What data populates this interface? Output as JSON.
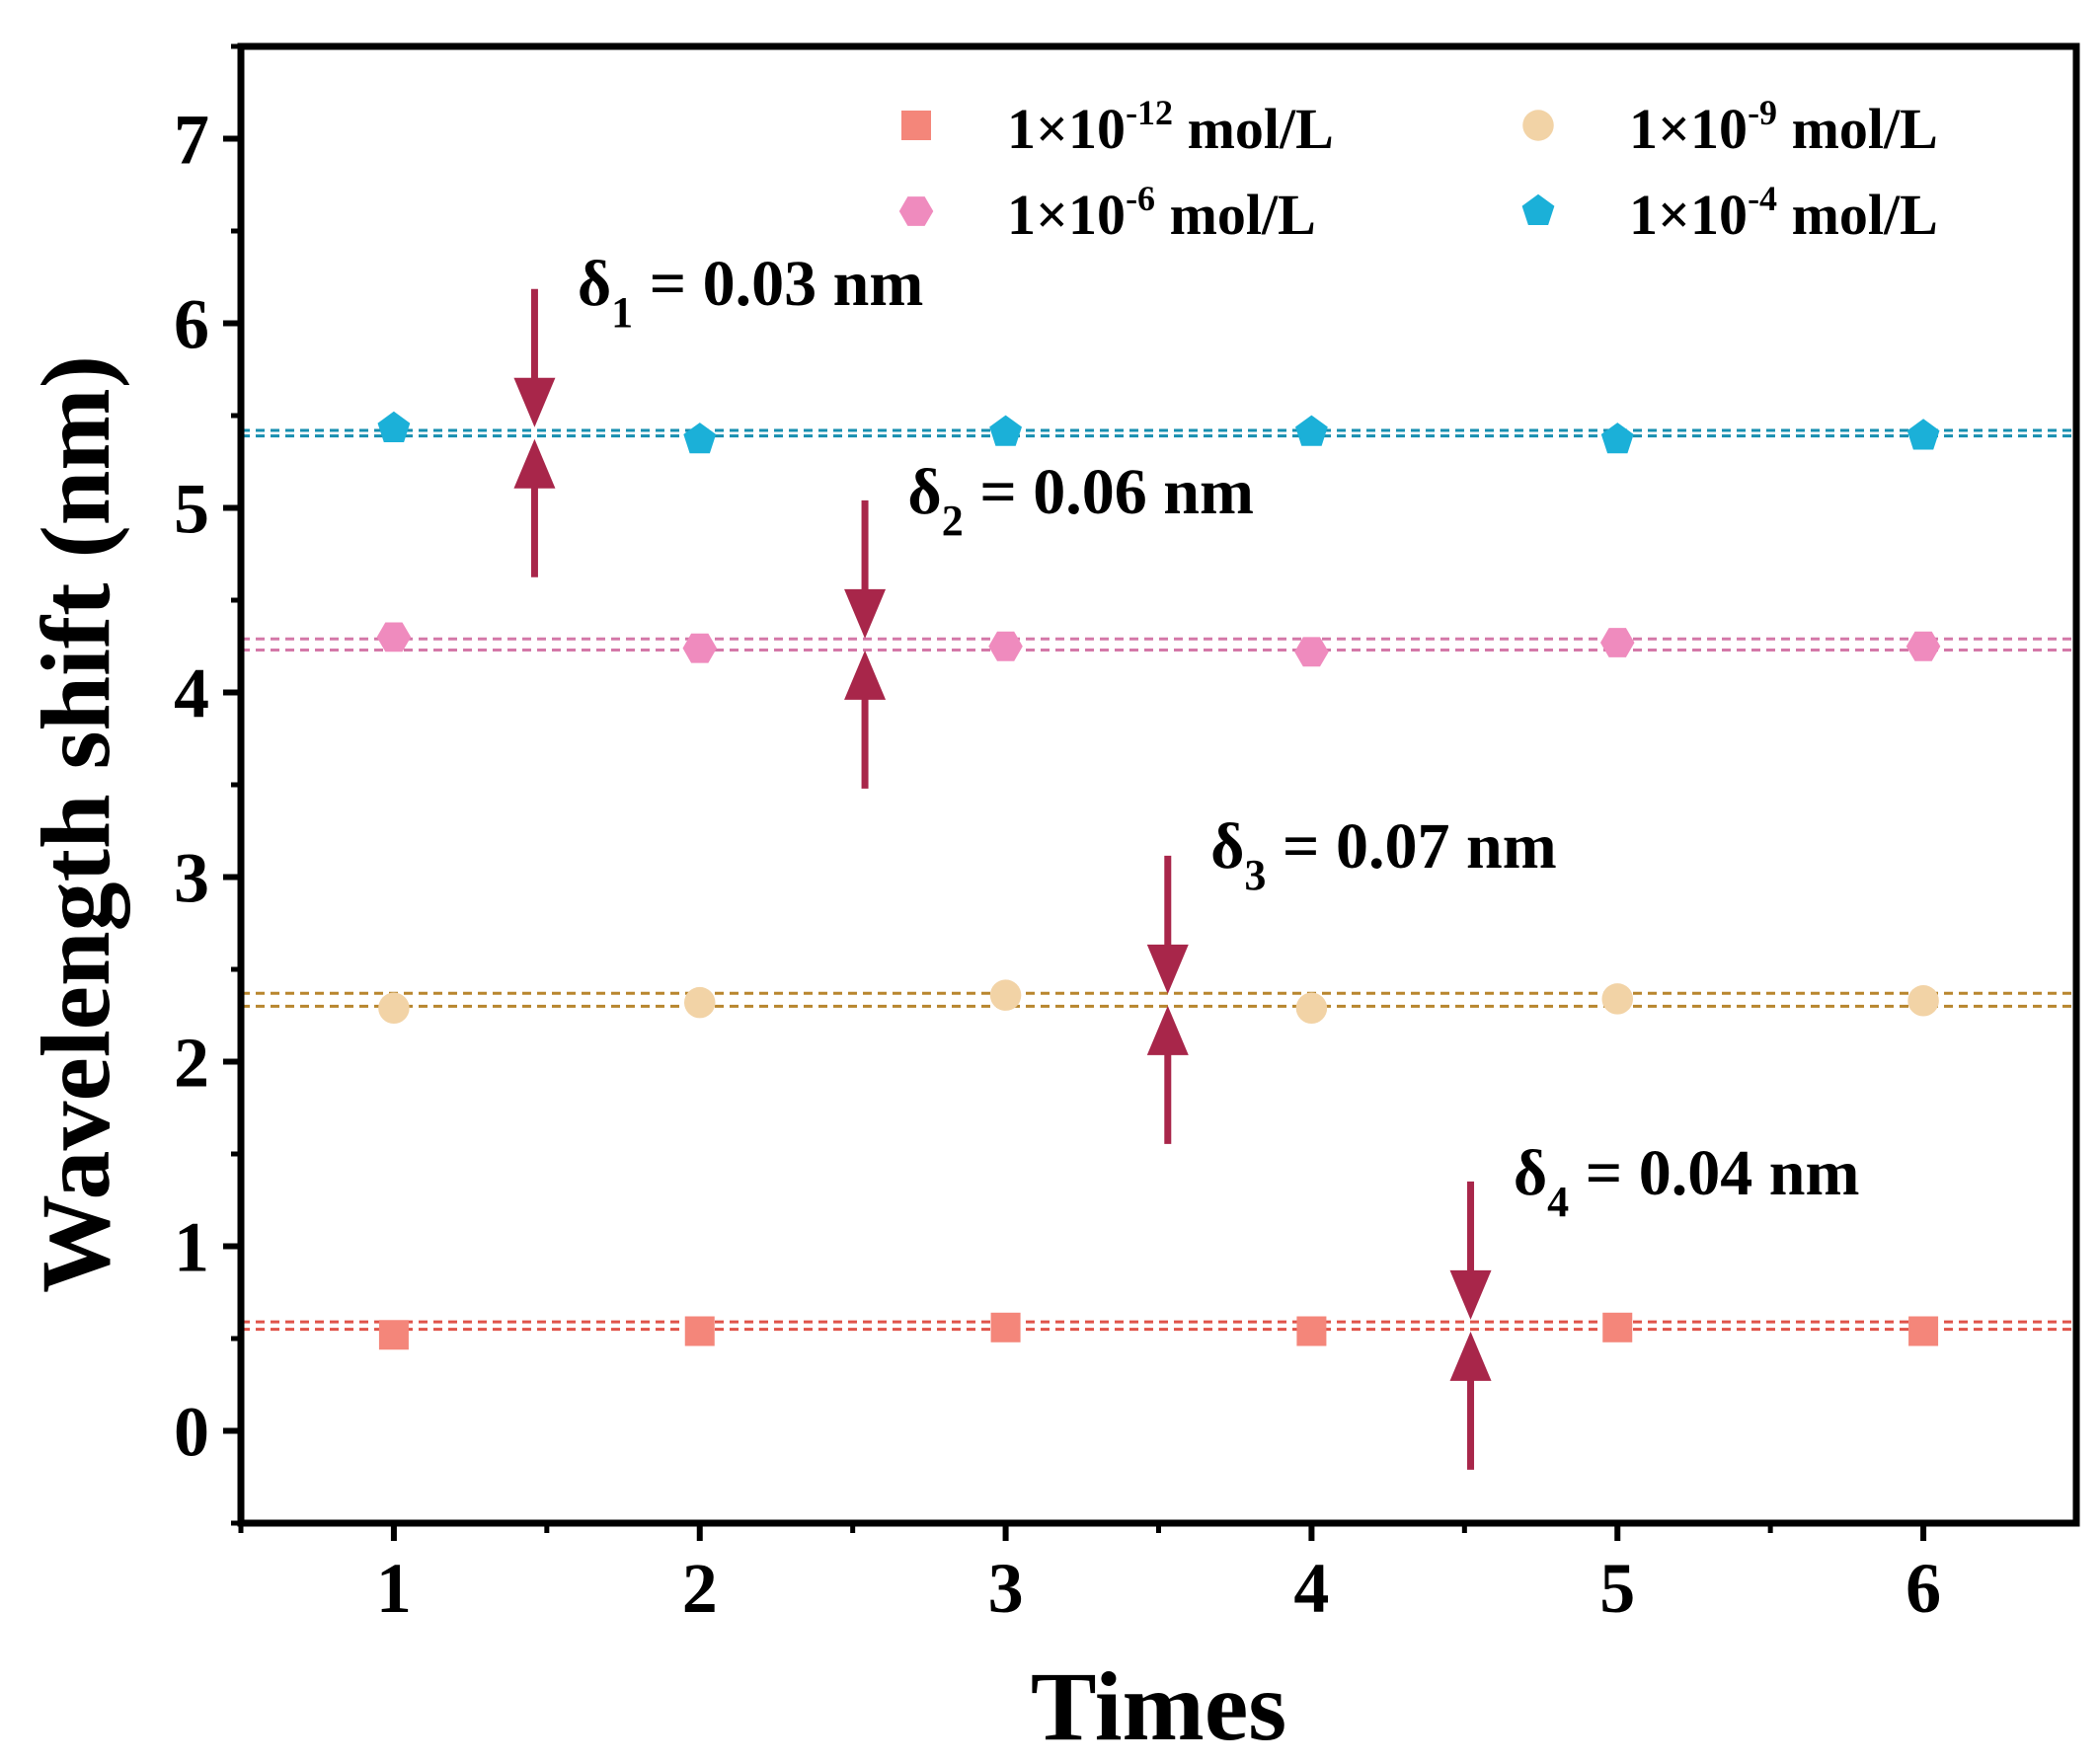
{
  "chart_data": {
    "type": "scatter",
    "xlabel": "Times",
    "ylabel": "Wavelength shift (nm)",
    "xlim": [
      0.5,
      6.5
    ],
    "ylim": [
      -0.5,
      7.5
    ],
    "x_ticks": [
      1,
      2,
      3,
      4,
      5,
      6
    ],
    "y_ticks": [
      0,
      1,
      2,
      3,
      4,
      5,
      6,
      7
    ],
    "x_tick_labels": [
      "1",
      "2",
      "3",
      "4",
      "5",
      "6"
    ],
    "y_tick_labels": [
      "0",
      "1",
      "2",
      "3",
      "4",
      "5",
      "6",
      "7"
    ],
    "grid": false,
    "legend_position": "top-right",
    "x": [
      1,
      2,
      3,
      4,
      5,
      6
    ],
    "series": [
      {
        "name": "1×10-12 mol/L",
        "label_base": "1×10",
        "label_exp": "-12",
        "label_unit": " mol/L",
        "marker": "square",
        "color": "#F4867A",
        "line_color": "#E0544A",
        "values": [
          0.52,
          0.54,
          0.56,
          0.54,
          0.56,
          0.54
        ],
        "band": [
          0.55,
          0.59
        ]
      },
      {
        "name": "1×10-9 mol/L",
        "label_base": "1×10",
        "label_exp": "-9",
        "label_unit": " mol/L",
        "marker": "circle",
        "color": "#F2D3A6",
        "line_color": "#B8862E",
        "values": [
          2.29,
          2.32,
          2.36,
          2.29,
          2.34,
          2.33
        ],
        "band": [
          2.3,
          2.37
        ]
      },
      {
        "name": "1×10-6 mol/L",
        "label_base": "1×10",
        "label_exp": "-6",
        "label_unit": " mol/L",
        "marker": "hexagon",
        "color": "#EF8BBE",
        "line_color": "#D478A8",
        "values": [
          4.3,
          4.24,
          4.25,
          4.22,
          4.27,
          4.25
        ],
        "band": [
          4.23,
          4.29
        ]
      },
      {
        "name": "1×10-4 mol/L",
        "label_base": "1×10",
        "label_exp": "-4",
        "label_unit": " mol/L",
        "marker": "pentagon",
        "color": "#1BB0D8",
        "line_color": "#178FB0",
        "values": [
          5.43,
          5.37,
          5.41,
          5.41,
          5.37,
          5.39
        ],
        "band": [
          5.39,
          5.42
        ]
      }
    ],
    "annotations": [
      {
        "id": "d1",
        "symbol": "δ",
        "sub": "1",
        "text": " = 0.03 nm",
        "arrow_x": 1.46,
        "arrow_y": 5.405,
        "label_x": 1.6,
        "label_y": 6.1
      },
      {
        "id": "d2",
        "symbol": "δ",
        "sub": "2",
        "text": " = 0.06 nm",
        "arrow_x": 2.54,
        "arrow_y": 4.26,
        "label_x": 2.68,
        "label_y": 4.97
      },
      {
        "id": "d3",
        "symbol": "δ",
        "sub": "3",
        "text": " = 0.07 nm",
        "arrow_x": 3.53,
        "arrow_y": 2.335,
        "label_x": 3.67,
        "label_y": 3.05
      },
      {
        "id": "d4",
        "symbol": "δ",
        "sub": "4",
        "text": " = 0.04 nm",
        "arrow_x": 4.52,
        "arrow_y": 0.57,
        "label_x": 4.66,
        "label_y": 1.28
      }
    ],
    "arrow_color": "#A8264A"
  }
}
